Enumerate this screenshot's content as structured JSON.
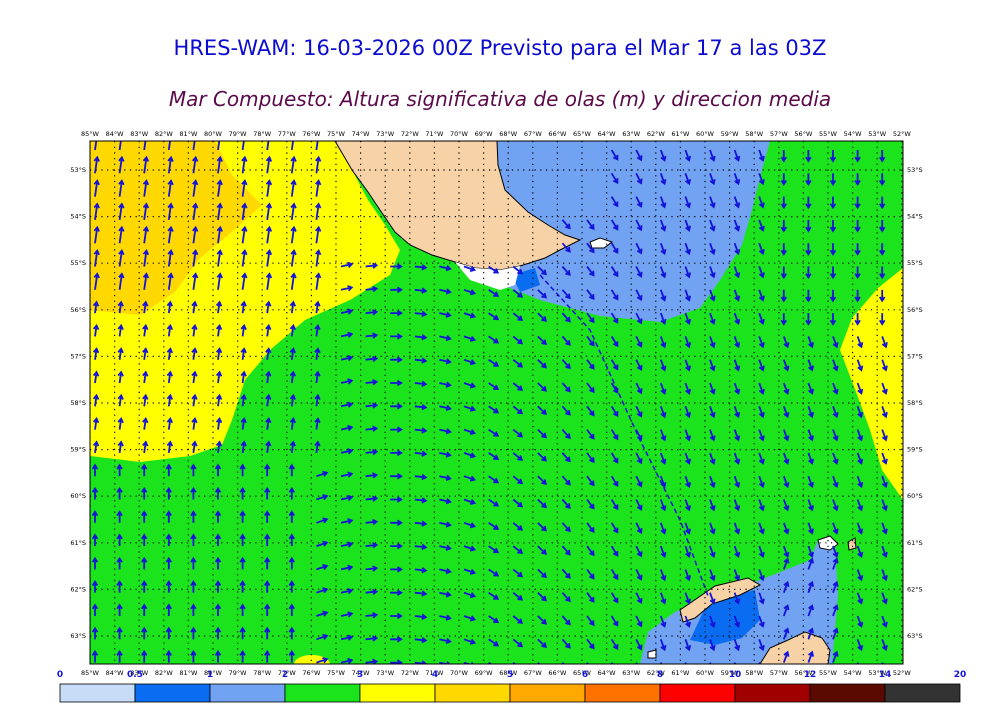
{
  "title": "HRES-WAM: 16-03-2026 00Z Previsto para el Mar 17 a las 03Z",
  "subtitle": "Mar Compuesto: Altura significativa de olas (m) y direccion media",
  "lon_labels": [
    "85°W",
    "84°W",
    "83°W",
    "82°W",
    "81°W",
    "80°W",
    "79°W",
    "78°W",
    "77°W",
    "76°W",
    "75°W",
    "74°W",
    "73°W",
    "72°W",
    "71°W",
    "70°W",
    "69°W",
    "68°W",
    "67°W",
    "66°W",
    "65°W",
    "64°W",
    "63°W",
    "62°W",
    "61°W",
    "60°W",
    "59°W",
    "58°W",
    "57°W",
    "56°W",
    "55°W",
    "54°W",
    "53°W",
    "52°W"
  ],
  "lat_labels": [
    "53°S",
    "54°S",
    "55°S",
    "56°S",
    "57°S",
    "58°S",
    "59°S",
    "60°S",
    "61°S",
    "62°S",
    "63°S"
  ],
  "colorbar": {
    "labels": [
      "0",
      "0.5",
      "1",
      "2",
      "3",
      "4",
      "5",
      "6",
      "8",
      "10",
      "12",
      "14",
      "20"
    ],
    "colors": [
      "#c6dcf7",
      "#0a6cf0",
      "#72a2f2",
      "#1ce41c",
      "#ffff00",
      "#ffd800",
      "#ffa800",
      "#ff7200",
      "#ff0000",
      "#a00000",
      "#5a0a00",
      "#333333"
    ]
  },
  "fill_colors": {
    "sea_green": "#1ce41c",
    "sea_yellow": "#ffff00",
    "sea_orange": "#ffd800",
    "sea_blue": "#72a2f2",
    "sea_darkblue": "#0a6cf0",
    "land": "#f6d2a6",
    "arrow": "#1414d8"
  }
}
